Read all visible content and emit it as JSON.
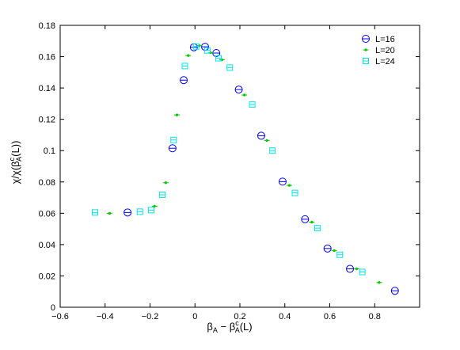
{
  "chart_data": {
    "type": "scatter",
    "title": "",
    "xlabel": "β_A − β_A^c(L)",
    "ylabel": "χ/χ(β_A^c(L))",
    "xlim": [
      -0.6,
      1.0
    ],
    "ylim": [
      0,
      0.18
    ],
    "xticks": [
      -0.6,
      -0.4,
      -0.2,
      0,
      0.2,
      0.4,
      0.6,
      0.8
    ],
    "xtick_labels": [
      "−0.6",
      "−0.4",
      "−0.2",
      "0",
      "0.2",
      "0.4",
      "0.6",
      "0.8"
    ],
    "yticks": [
      0,
      0.02,
      0.04,
      0.06,
      0.08,
      0.1,
      0.12,
      0.14,
      0.16,
      0.18
    ],
    "ytick_labels": [
      "0",
      "0.02",
      "0.04",
      "0.06",
      "0.08",
      "0.1",
      "0.12",
      "0.14",
      "0.16",
      "0.18"
    ],
    "grid": false,
    "legend": "top-right",
    "series": [
      {
        "name": "L=16",
        "marker": "circle",
        "color": "#0000ff",
        "x": [
          -0.3,
          -0.1,
          -0.05,
          -0.005,
          0.045,
          0.095,
          0.195,
          0.295,
          0.39,
          0.49,
          0.59,
          0.69,
          0.89
        ],
        "y": [
          0.0605,
          0.1015,
          0.145,
          0.166,
          0.1663,
          0.1623,
          0.139,
          0.1095,
          0.0802,
          0.0562,
          0.0375,
          0.0245,
          0.0105
        ]
      },
      {
        "name": "L=20",
        "marker": "dot",
        "color": "#00cc00",
        "x": [
          -0.38,
          -0.18,
          -0.13,
          -0.08,
          -0.03,
          0.02,
          0.07,
          0.12,
          0.22,
          0.32,
          0.42,
          0.52,
          0.62,
          0.72,
          0.82
        ],
        "y": [
          0.06,
          0.0645,
          0.0795,
          0.1228,
          0.1607,
          0.167,
          0.1625,
          0.158,
          0.1355,
          0.1065,
          0.0778,
          0.0543,
          0.0362,
          0.0245,
          0.0158
        ]
      },
      {
        "name": "L=24",
        "marker": "square",
        "color": "#00e5ee",
        "x": [
          -0.445,
          -0.245,
          -0.195,
          -0.145,
          -0.095,
          -0.045,
          0.005,
          0.055,
          0.105,
          0.155,
          0.255,
          0.345,
          0.445,
          0.545,
          0.645,
          0.745
        ],
        "y": [
          0.0605,
          0.061,
          0.062,
          0.0718,
          0.1068,
          0.154,
          0.1665,
          0.164,
          0.159,
          0.153,
          0.1295,
          0.1,
          0.073,
          0.0505,
          0.0335,
          0.0225
        ]
      }
    ]
  }
}
